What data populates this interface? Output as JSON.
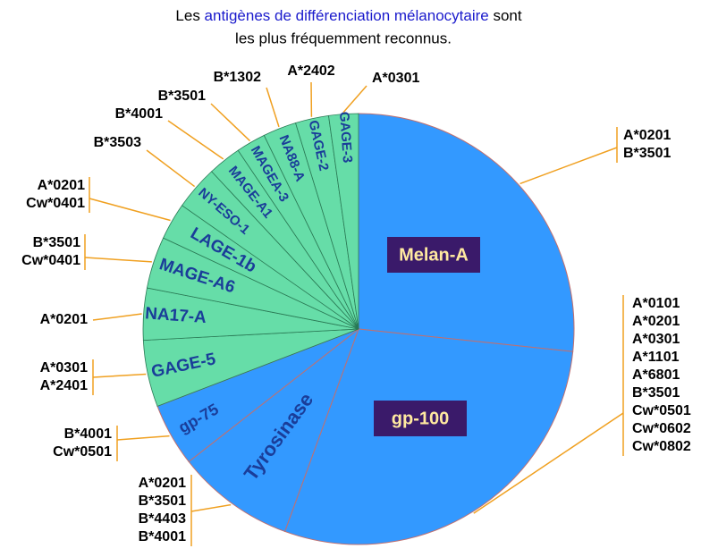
{
  "chart_data": {
    "type": "pie",
    "title": {
      "prefix": "Les ",
      "highlight": "antigènes de différenciation mélanocytaire",
      "suffix": " sont",
      "line2": "les plus fréquemment  reconnus."
    },
    "slices": [
      {
        "name": "Melan-A",
        "value": 96,
        "color": "#3399ff",
        "alleles": [
          "A*0201",
          "B*3501"
        ]
      },
      {
        "name": "gp-100",
        "value": 104,
        "color": "#3399ff",
        "alleles": [
          "A*0101",
          "A*0201",
          "A*0301",
          "A*1101",
          "A*6801",
          "B*3501",
          "Cw*0501",
          "Cw*0602",
          "Cw*0802"
        ]
      },
      {
        "name": "Tyrosinase",
        "value": 32,
        "color": "#3399ff",
        "alleles": [
          "A*0201",
          "B*3501",
          "B*4403",
          "B*4001"
        ]
      },
      {
        "name": "gp-75",
        "value": 17,
        "color": "#3399ff",
        "alleles": [
          "B*4001",
          "Cw*0501"
        ]
      },
      {
        "name": "GAGE-5",
        "value": 18,
        "color": "#66dda8",
        "alleles": [
          "A*0301",
          "A*2401"
        ]
      },
      {
        "name": "NA17-A",
        "value": 14,
        "color": "#66dda8",
        "alleles": [
          "A*0201"
        ]
      },
      {
        "name": "MAGE-A6",
        "value": 14,
        "color": "#66dda8",
        "alleles": [
          "B*3501",
          "Cw*0401"
        ]
      },
      {
        "name": "LAGE-1b",
        "value": 10,
        "color": "#66dda8",
        "alleles": [
          "A*0201",
          "Cw*0401"
        ]
      },
      {
        "name": "NY-ESO-1",
        "value": 12,
        "color": "#66dda8",
        "alleles": [
          "B*3503"
        ]
      },
      {
        "name": "MAGE-A1",
        "value": 9,
        "color": "#66dda8",
        "alleles": [
          "B*4001"
        ]
      },
      {
        "name": "MAGEA-3",
        "value": 8,
        "color": "#66dda8",
        "alleles": [
          "B*3501"
        ]
      },
      {
        "name": "NA88-A",
        "value": 9,
        "color": "#66dda8",
        "alleles": [
          "B*1302"
        ]
      },
      {
        "name": "GAGE-2",
        "value": 9,
        "color": "#66dda8",
        "alleles": [
          "A*2402"
        ]
      },
      {
        "name": "GAGE-3",
        "value": 8,
        "color": "#66dda8",
        "alleles": [
          "A*0301"
        ]
      }
    ]
  }
}
